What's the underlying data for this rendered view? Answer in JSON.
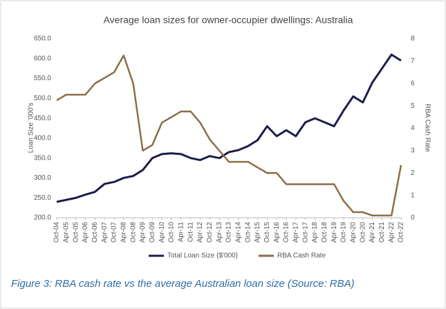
{
  "chart_data": {
    "type": "line",
    "title": "Average loan sizes for owner-occupier dwellings: Australia",
    "caption": "Figure 3: RBA cash rate vs the average Australian loan size (Source: RBA)",
    "ylabel": "Loan Size '000's",
    "y2label": "RBA Cash Rate",
    "categories": [
      "Oct-04",
      "Apr-05",
      "Oct-05",
      "Apr-06",
      "Oct-06",
      "Apr-07",
      "Oct-07",
      "Apr-08",
      "Oct-08",
      "Apr-09",
      "Oct-09",
      "Apr-10",
      "Oct-10",
      "Apr-11",
      "Oct-11",
      "Apr-12",
      "Oct-12",
      "Apr-13",
      "Oct-13",
      "Apr-14",
      "Oct-14",
      "Apr-15",
      "Oct-15",
      "Apr-16",
      "Oct-16",
      "Apr-17",
      "Oct-17",
      "Apr-18",
      "Oct-18",
      "Apr-19",
      "Oct-19",
      "Apr-20",
      "Oct-20",
      "Apr-21",
      "Oct-21",
      "Apr-22",
      "Oct-22"
    ],
    "series": [
      {
        "name": "Total Loan Size ($'000)",
        "color": "#1c1c4a",
        "values": [
          240,
          245,
          250,
          258,
          265,
          285,
          290,
          300,
          305,
          320,
          350,
          360,
          362,
          360,
          350,
          345,
          355,
          350,
          365,
          370,
          380,
          395,
          430,
          405,
          420,
          405,
          440,
          450,
          440,
          430,
          470,
          505,
          490,
          540,
          575,
          610,
          595
        ]
      },
      {
        "name": "RBA Cash Rate",
        "color": "#8b6d47",
        "axis": "y2",
        "values": [
          5.25,
          5.5,
          5.5,
          5.5,
          6.0,
          6.25,
          6.5,
          7.25,
          6.0,
          3.0,
          3.25,
          4.25,
          4.5,
          4.75,
          4.75,
          4.25,
          3.5,
          3.0,
          2.5,
          2.5,
          2.5,
          2.25,
          2.0,
          2.0,
          1.5,
          1.5,
          1.5,
          1.5,
          1.5,
          1.5,
          0.75,
          0.25,
          0.25,
          0.1,
          0.1,
          0.1,
          2.35
        ]
      }
    ],
    "ylim": [
      200,
      650
    ],
    "yticks": [
      {
        "value": 200,
        "label": "200.0"
      },
      {
        "value": 250,
        "label": "250.0"
      },
      {
        "value": 300,
        "label": "300.0"
      },
      {
        "value": 350,
        "label": "350.0"
      },
      {
        "value": 400,
        "label": "400.0"
      },
      {
        "value": 450,
        "label": "450.0"
      },
      {
        "value": 500,
        "label": "500.0"
      },
      {
        "value": 550,
        "label": "550.0"
      },
      {
        "value": 600,
        "label": "600.0"
      },
      {
        "value": 650,
        "label": "650.0"
      }
    ],
    "y2lim": [
      0,
      8
    ],
    "y2ticks": [
      0,
      1,
      2,
      3,
      4,
      5,
      6,
      7,
      8
    ],
    "grid": false
  }
}
